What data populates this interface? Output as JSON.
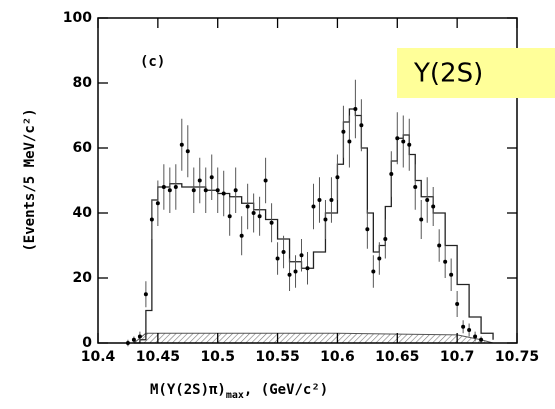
{
  "chart_data": {
    "type": "scatter",
    "annotation": "(c)",
    "callout": "Y(2S)",
    "y_label": "(Events/5 MeV/c²)",
    "x_label": "M(Y(2S)π)",
    "x_label_sub": "max",
    "x_label_unit": ",  (GeV/c²)",
    "xlim": [
      10.4,
      10.75
    ],
    "xticks": [
      10.4,
      10.45,
      10.5,
      10.55,
      10.6,
      10.65,
      10.7,
      10.75
    ],
    "ylim": [
      0,
      100
    ],
    "yticks": [
      0,
      20,
      40,
      60,
      80,
      100
    ],
    "color": "#000000",
    "x": [
      10.425,
      10.43,
      10.435,
      10.44,
      10.445,
      10.45,
      10.455,
      10.46,
      10.465,
      10.47,
      10.475,
      10.48,
      10.485,
      10.49,
      10.495,
      10.5,
      10.505,
      10.51,
      10.515,
      10.52,
      10.525,
      10.53,
      10.535,
      10.54,
      10.545,
      10.55,
      10.555,
      10.56,
      10.565,
      10.57,
      10.575,
      10.58,
      10.585,
      10.59,
      10.595,
      10.6,
      10.605,
      10.61,
      10.615,
      10.62,
      10.625,
      10.63,
      10.635,
      10.64,
      10.645,
      10.65,
      10.655,
      10.66,
      10.665,
      10.67,
      10.675,
      10.68,
      10.685,
      10.69,
      10.695,
      10.7,
      10.705,
      10.71,
      10.715,
      10.72
    ],
    "values": [
      0,
      1,
      2,
      15,
      38,
      43,
      48,
      47,
      48,
      61,
      59,
      47,
      50,
      47,
      51,
      47,
      46,
      39,
      47,
      33,
      42,
      40,
      39,
      50,
      37,
      26,
      28,
      21,
      22,
      27,
      23,
      42,
      44,
      38,
      44,
      51,
      65,
      62,
      72,
      67,
      35,
      22,
      26,
      32,
      52,
      63,
      62,
      61,
      48,
      38,
      44,
      42,
      30,
      25,
      21,
      12,
      5,
      4,
      2,
      1
    ],
    "errors": [
      1,
      1,
      1.5,
      4,
      6,
      7,
      7,
      7,
      7,
      8,
      8,
      7,
      7,
      7,
      7,
      7,
      7,
      6,
      7,
      6,
      7,
      6,
      6,
      7,
      6,
      5,
      5,
      5,
      5,
      5,
      5,
      7,
      7,
      6,
      7,
      7,
      8,
      8,
      9,
      8,
      6,
      5,
      5,
      6,
      7,
      8,
      8,
      8,
      7,
      6,
      7,
      6,
      5,
      5,
      5,
      4,
      2,
      2,
      1.5,
      1
    ],
    "fit": {
      "x": [
        10.43,
        10.435,
        10.44,
        10.445,
        10.45,
        10.46,
        10.47,
        10.48,
        10.49,
        10.5,
        10.51,
        10.52,
        10.53,
        10.54,
        10.55,
        10.56,
        10.57,
        10.58,
        10.59,
        10.6,
        10.605,
        10.61,
        10.615,
        10.62,
        10.625,
        10.63,
        10.635,
        10.64,
        10.645,
        10.65,
        10.655,
        10.66,
        10.665,
        10.67,
        10.68,
        10.69,
        10.7,
        10.71,
        10.72,
        10.73
      ],
      "values": [
        0,
        1,
        10,
        44,
        48,
        49,
        48,
        48,
        47,
        46,
        45,
        43,
        41,
        38,
        32,
        25,
        23,
        28,
        40,
        55,
        68,
        72,
        70,
        60,
        40,
        28,
        30,
        42,
        56,
        63,
        64,
        58,
        50,
        45,
        40,
        30,
        18,
        8,
        3,
        1
      ]
    },
    "background": {
      "x": [
        10.43,
        10.44,
        10.6,
        10.7,
        10.72,
        10.73
      ],
      "values": [
        0,
        3,
        3,
        2.5,
        1,
        0
      ]
    }
  }
}
